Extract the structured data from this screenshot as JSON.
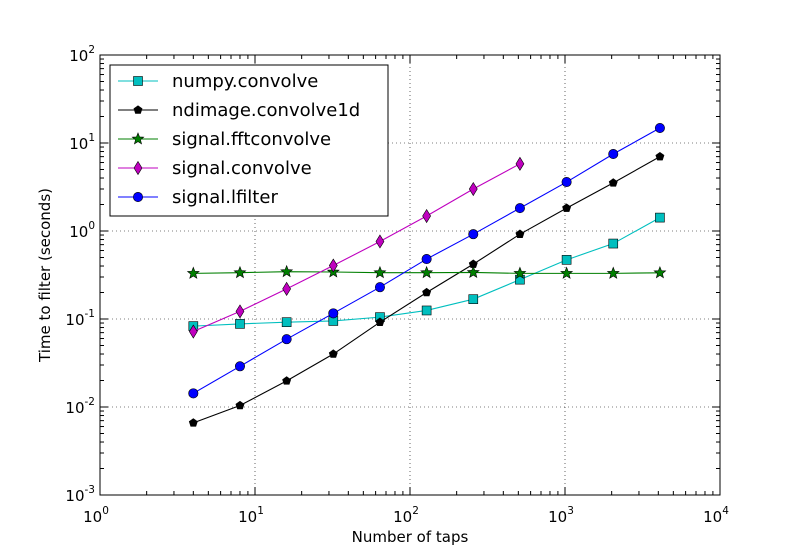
{
  "chart_data": {
    "type": "line",
    "xlabel": "Number of taps",
    "ylabel": "Time to filter (seconds)",
    "xscale": "log",
    "yscale": "log",
    "xlim": [
      1,
      10000
    ],
    "ylim": [
      0.001,
      100
    ],
    "x_ticks": [
      {
        "base": "10",
        "exp": "0"
      },
      {
        "base": "10",
        "exp": "1"
      },
      {
        "base": "10",
        "exp": "2"
      },
      {
        "base": "10",
        "exp": "3"
      },
      {
        "base": "10",
        "exp": "4"
      }
    ],
    "y_ticks": [
      {
        "base": "10",
        "exp": "-3"
      },
      {
        "base": "10",
        "exp": "-2"
      },
      {
        "base": "10",
        "exp": "-1"
      },
      {
        "base": "10",
        "exp": "0"
      },
      {
        "base": "10",
        "exp": "1"
      },
      {
        "base": "10",
        "exp": "2"
      }
    ],
    "grid": true,
    "legend": "top-left",
    "series": [
      {
        "name": "numpy.convolve",
        "color": "#00bfbf",
        "marker": "square",
        "x": [
          4,
          8,
          16,
          32,
          64,
          128,
          256,
          512,
          1024,
          2048,
          4096
        ],
        "y": [
          0.083,
          0.088,
          0.092,
          0.095,
          0.105,
          0.125,
          0.168,
          0.28,
          0.47,
          0.72,
          1.42
        ]
      },
      {
        "name": "ndimage.convolve1d",
        "color": "#000000",
        "marker": "pentagon",
        "x": [
          4,
          8,
          16,
          32,
          64,
          128,
          256,
          512,
          1024,
          2048,
          4096
        ],
        "y": [
          0.0066,
          0.0104,
          0.0198,
          0.04,
          0.092,
          0.2,
          0.42,
          0.92,
          1.82,
          3.52,
          7.0
        ]
      },
      {
        "name": "signal.fftconvolve",
        "color": "#007f00",
        "marker": "star",
        "x": [
          4,
          8,
          16,
          32,
          64,
          128,
          256,
          512,
          1024,
          2048,
          4096
        ],
        "y": [
          0.33,
          0.336,
          0.345,
          0.342,
          0.336,
          0.336,
          0.338,
          0.33,
          0.33,
          0.33,
          0.335
        ]
      },
      {
        "name": "signal.convolve",
        "color": "#bf00bf",
        "marker": "diamond",
        "x": [
          4,
          8,
          16,
          32,
          64,
          128,
          256,
          512
        ],
        "y": [
          0.072,
          0.122,
          0.22,
          0.405,
          0.76,
          1.48,
          3.0,
          5.8
        ]
      },
      {
        "name": "signal.lfilter",
        "color": "#0000ff",
        "marker": "circle",
        "x": [
          4,
          8,
          16,
          32,
          64,
          128,
          256,
          512,
          1024,
          2048,
          4096
        ],
        "y": [
          0.0143,
          0.029,
          0.059,
          0.116,
          0.23,
          0.48,
          0.92,
          1.82,
          3.6,
          7.5,
          14.8
        ]
      }
    ]
  }
}
